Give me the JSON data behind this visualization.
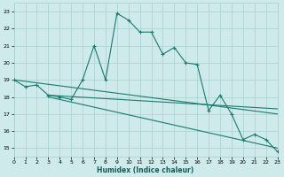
{
  "xlabel": "Humidex (Indice chaleur)",
  "background_color": "#ceeaea",
  "grid_color": "#b0d4d4",
  "line_color": "#1a7a6e",
  "xlim": [
    0,
    23
  ],
  "ylim": [
    14.5,
    23.5
  ],
  "xticks": [
    0,
    1,
    2,
    3,
    4,
    5,
    6,
    7,
    8,
    9,
    10,
    11,
    12,
    13,
    14,
    15,
    16,
    17,
    18,
    19,
    20,
    21,
    22,
    23
  ],
  "yticks": [
    15,
    16,
    17,
    18,
    19,
    20,
    21,
    22,
    23
  ],
  "series1_x": [
    0,
    1,
    2,
    3,
    4,
    5,
    6,
    7,
    8,
    9,
    10,
    11,
    12,
    13,
    14,
    15,
    16,
    17,
    18,
    19,
    20,
    21,
    22,
    23
  ],
  "series1_y": [
    19.0,
    18.6,
    18.7,
    18.1,
    18.0,
    17.85,
    19.0,
    21.0,
    19.0,
    22.9,
    22.5,
    21.8,
    21.8,
    20.5,
    20.9,
    20.0,
    19.9,
    17.2,
    18.1,
    17.0,
    15.5,
    15.8,
    15.5,
    14.8
  ],
  "series2_x": [
    0,
    23
  ],
  "series2_y": [
    19.0,
    17.0
  ],
  "series3_x": [
    3,
    23
  ],
  "series3_y": [
    18.1,
    17.3
  ],
  "series4_x": [
    3,
    23
  ],
  "series4_y": [
    18.0,
    15.0
  ]
}
